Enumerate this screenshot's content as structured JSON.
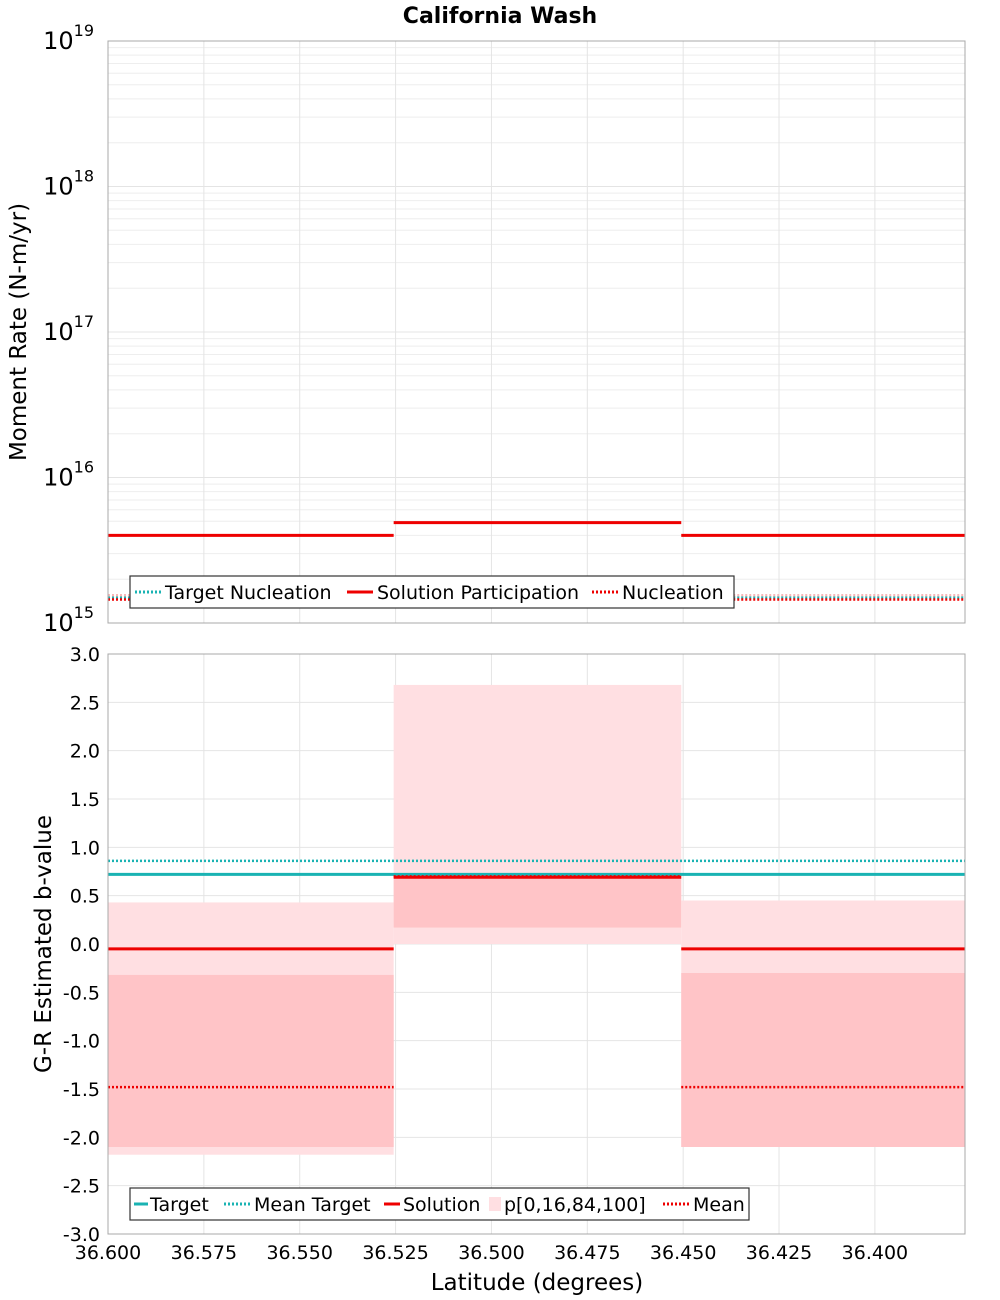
{
  "title": "California Wash",
  "colors": {
    "target": "#1ab3b3",
    "solution": "#ee0000",
    "mean": "#ee0000",
    "band_outer": "#ffdfe2",
    "band_inner": "#ffc4c7",
    "participation_pct": "#f8b8b8"
  },
  "chart_data": [
    {
      "type": "line",
      "title": "California Wash",
      "ylabel": "Moment Rate (N-m/yr)",
      "xlabel": "",
      "yscale": "log",
      "ylim": [
        1000000000000000.0,
        1e+19
      ],
      "xlim": [
        36.6,
        36.3765
      ],
      "x_reversed": true,
      "grid": true,
      "legend_position": "bottom-left",
      "x_ticks": [
        "36.600",
        "36.575",
        "36.550",
        "36.525",
        "36.500",
        "36.475",
        "36.450",
        "36.425",
        "36.400"
      ],
      "y_ticks": [
        {
          "base": "10",
          "exp": "15"
        },
        {
          "base": "10",
          "exp": "16"
        },
        {
          "base": "10",
          "exp": "17"
        },
        {
          "base": "10",
          "exp": "18"
        },
        {
          "base": "10",
          "exp": "19"
        }
      ],
      "bins": [
        [
          36.6,
          36.5255
        ],
        [
          36.5255,
          36.4505
        ],
        [
          36.4505,
          36.3765
        ]
      ],
      "series": [
        {
          "name": "Target Nucleation",
          "style": "dotted",
          "color": "#1ab3b3",
          "values": [
            1500000000000000.0,
            1500000000000000.0,
            1500000000000000.0
          ]
        },
        {
          "name": "Solution Participation",
          "style": "solid",
          "color": "#ee0000",
          "values": [
            4000000000000000.0,
            4900000000000000.0,
            4000000000000000.0
          ]
        },
        {
          "name": "Nucleation",
          "style": "dotted",
          "color": "#ee0000",
          "values": [
            1450000000000000.0,
            1450000000000000.0,
            1450000000000000.0
          ]
        },
        {
          "style": "dotted",
          "color": "#f8b8b8",
          "values": [
            1550000000000000.0,
            1900000000000000.0,
            1550000000000000.0
          ]
        }
      ]
    },
    {
      "type": "line",
      "title": "",
      "ylabel": "G-R Estimated b-value",
      "xlabel": "Latitude (degrees)",
      "ylim": [
        -3.0,
        3.0
      ],
      "xlim": [
        36.6,
        36.3765
      ],
      "x_reversed": true,
      "grid": true,
      "legend_position": "bottom-left",
      "x_ticks": [
        "36.600",
        "36.575",
        "36.550",
        "36.525",
        "36.500",
        "36.475",
        "36.450",
        "36.425",
        "36.400"
      ],
      "y_ticks": [
        "3.0",
        "2.5",
        "2.0",
        "1.5",
        "1.0",
        "0.5",
        "0.0",
        "-0.5",
        "-1.0",
        "-1.5",
        "-2.0",
        "-2.5",
        "-3.0"
      ],
      "bins": [
        [
          36.6,
          36.5255
        ],
        [
          36.5255,
          36.4505
        ],
        [
          36.4505,
          36.3765
        ]
      ],
      "target": 0.72,
      "mean_target": 0.86,
      "solution": [
        -0.05,
        0.69,
        -0.05
      ],
      "mean": [
        -1.48,
        0.7,
        -1.48
      ],
      "p0": [
        -2.18,
        0.0,
        -2.1
      ],
      "p16": [
        -2.1,
        0.17,
        -2.1
      ],
      "p84": [
        -0.32,
        0.73,
        -0.3
      ],
      "p100": [
        0.43,
        2.68,
        0.45
      ],
      "legend": [
        "Target",
        "Mean Target",
        "Solution",
        "p[0,16,84,100]",
        "Mean"
      ]
    }
  ]
}
